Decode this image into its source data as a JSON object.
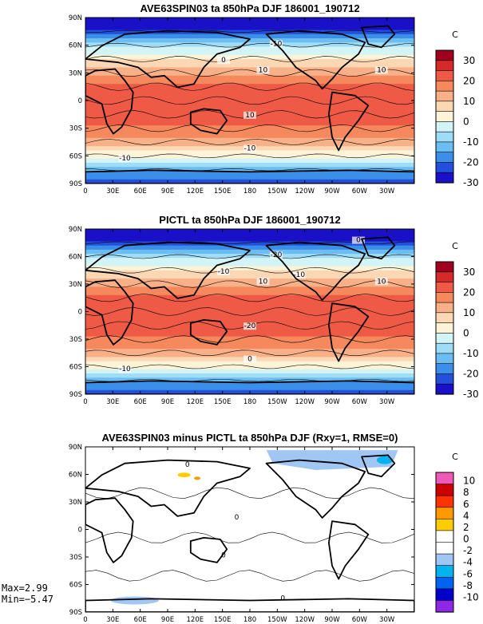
{
  "panels": [
    {
      "title": "AVE63SPIN03 ta 850hPa DJF 186001_190712",
      "unit": "C",
      "colorbar_labels": [
        "30",
        "20",
        "10",
        "0",
        "-10",
        "-20",
        "-30"
      ],
      "contour_labels": [
        "-10",
        "0",
        "10",
        "10",
        "10",
        "-10",
        "-10"
      ]
    },
    {
      "title": "PICTL ta 850hPa DJF 186001_190712",
      "unit": "C",
      "colorbar_labels": [
        "30",
        "20",
        "10",
        "0",
        "-10",
        "-20",
        "-30"
      ],
      "contour_labels": [
        "-20",
        "-10",
        "10",
        "10",
        "-20",
        "0",
        "-10",
        "0",
        "-10"
      ]
    },
    {
      "title": "AVE63SPIN03 minus PICTL ta 850hPa DJF (Rxy=1, RMSE=0)",
      "unit": "C",
      "colorbar_labels": [
        "10",
        "8",
        "6",
        "4",
        "2",
        "0",
        "-2",
        "-4",
        "-6",
        "-8",
        "-10"
      ],
      "contour_labels": [
        "0",
        "0",
        "0",
        "0"
      ]
    }
  ],
  "axes": {
    "lat_labels": [
      "90N",
      "60N",
      "30N",
      "0",
      "30S",
      "60S",
      "90S"
    ],
    "lon_labels": [
      "0",
      "30E",
      "60E",
      "90E",
      "120E",
      "150E",
      "180",
      "150W",
      "120W",
      "90W",
      "60W",
      "30W"
    ]
  },
  "stats": {
    "max": "Max=2.99",
    "min": "Min=−5.47"
  },
  "colors": {
    "abs_scale": [
      "#a0001e",
      "#d42a2a",
      "#ee5a45",
      "#f6885e",
      "#f8b088",
      "#fbd7b4",
      "#fdf4d8",
      "#d3f4f6",
      "#9fdcf5",
      "#6bbdf2",
      "#3c8fe9",
      "#2250dc",
      "#1a10c8"
    ],
    "diff_scale": [
      "#ee5ab8",
      "#cc0000",
      "#ff3300",
      "#ff9900",
      "#ffcc00",
      "#ffffff",
      "#ffffff",
      "#a0c6f4",
      "#00b4f0",
      "#0064f0",
      "#0000c8",
      "#8c28e6"
    ]
  }
}
